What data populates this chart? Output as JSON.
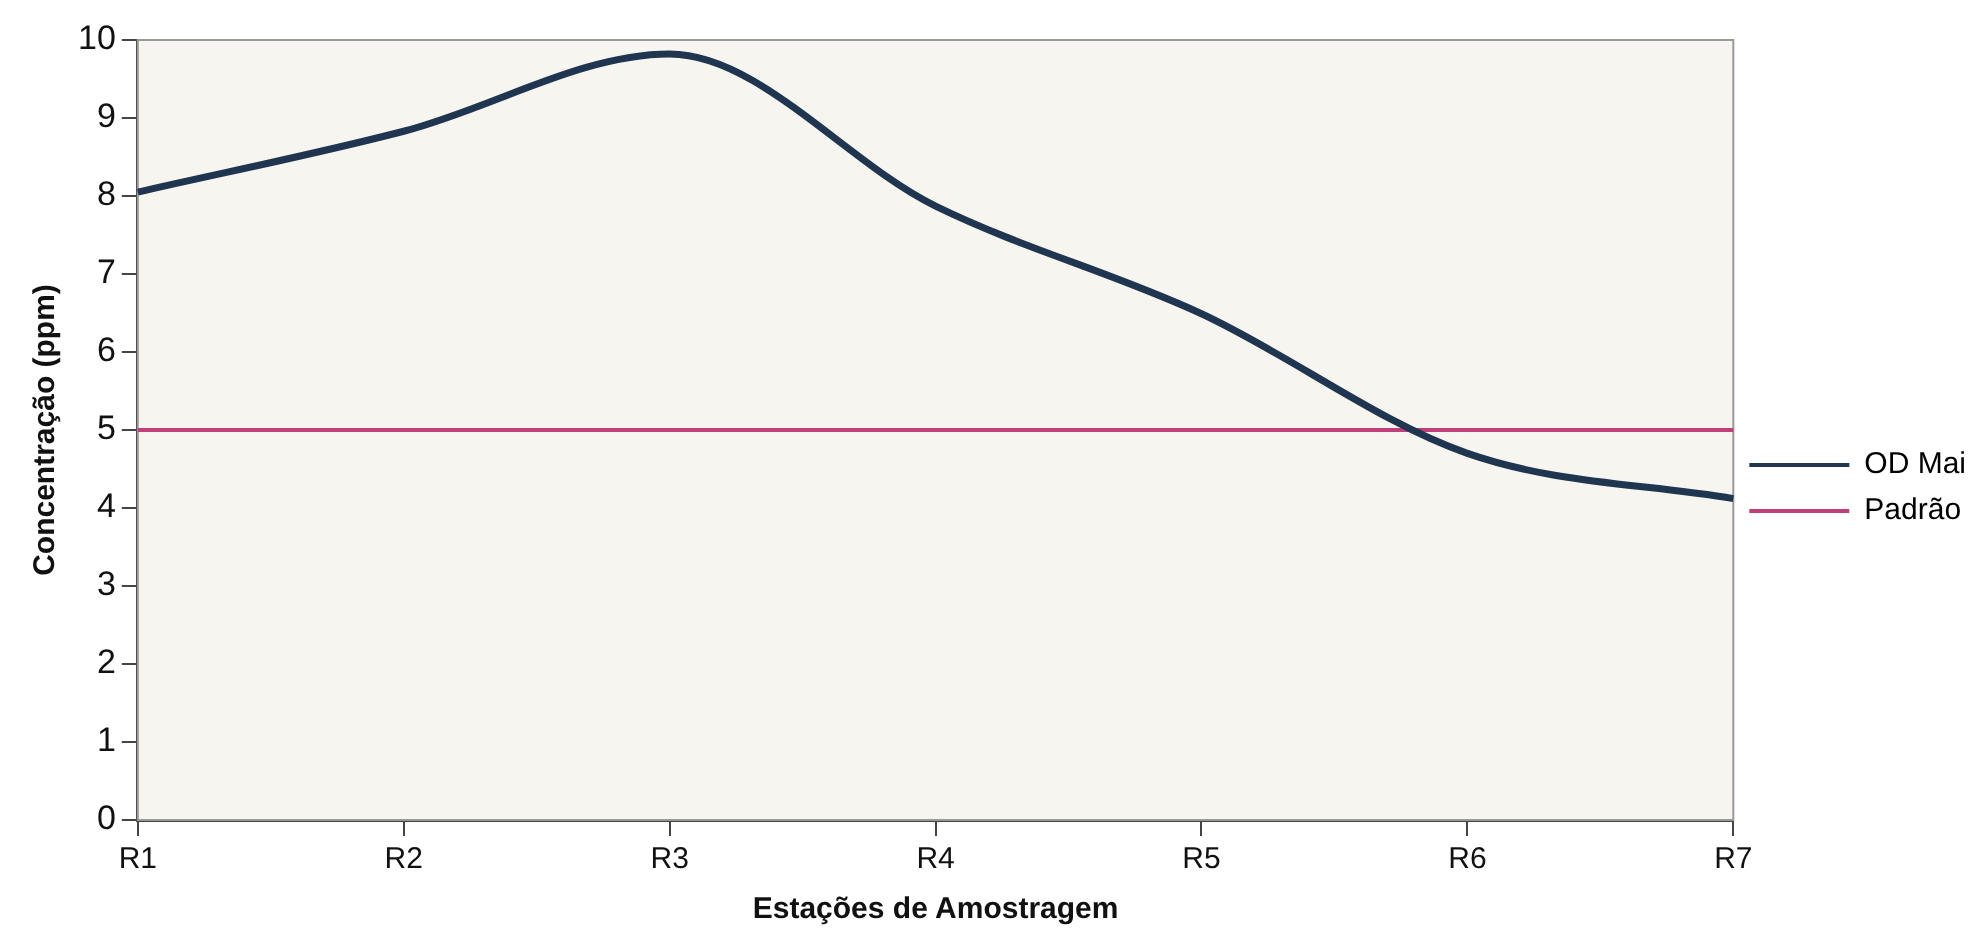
{
  "chart_data": {
    "type": "line",
    "xlabel": "Estações de Amostragem",
    "ylabel": "Concentração (ppm)",
    "categories": [
      "R1",
      "R2",
      "R3",
      "R4",
      "R5",
      "R6",
      "R7"
    ],
    "series": [
      {
        "name": "OD Mai",
        "color": "#1f3550",
        "values": [
          8.05,
          8.83,
          9.82,
          7.87,
          6.49,
          4.7,
          4.12
        ]
      },
      {
        "name": "Padrão",
        "color": "#c0407a",
        "values": [
          5,
          5,
          5,
          5,
          5,
          5,
          5
        ]
      }
    ],
    "ylim": [
      0,
      10
    ],
    "yticks": [
      0,
      1,
      2,
      3,
      4,
      5,
      6,
      7,
      8,
      9,
      10
    ],
    "legend": "right",
    "marker": "none",
    "line_style": "solid"
  }
}
